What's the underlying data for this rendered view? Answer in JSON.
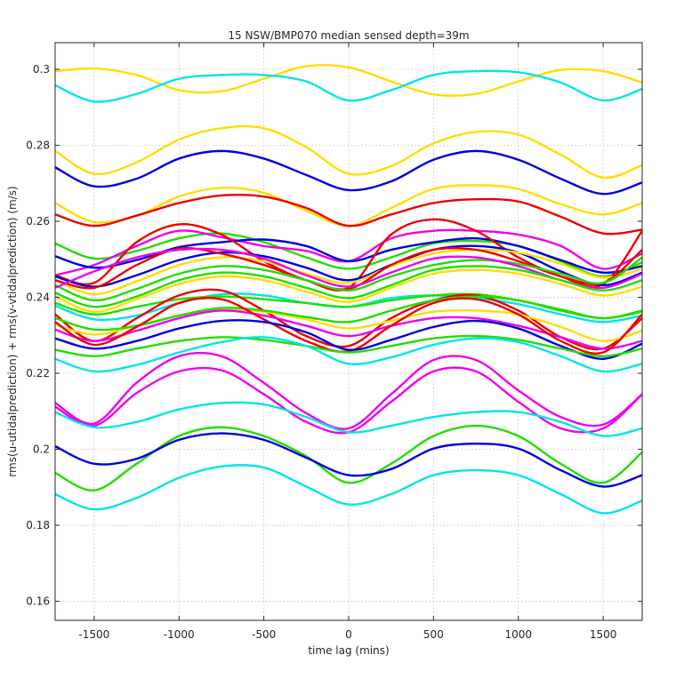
{
  "chart_data": {
    "type": "line",
    "title": "15 NSW/BMP070 median sensed depth=39m",
    "xlabel": "time lag (mins)",
    "ylabel": "rms(u-utidalprediction) + rms(v-vtidalprediction) (m/s)",
    "xlim": [
      -1730,
      1730
    ],
    "ylim": [
      0.155,
      0.307
    ],
    "xticks": [
      -1500,
      -1000,
      -500,
      0,
      500,
      1000,
      1500
    ],
    "xtick_labels": [
      "-1500",
      "-1000",
      "-500",
      "0",
      "500",
      "1000",
      "1500"
    ],
    "yticks": [
      0.16,
      0.18,
      0.2,
      0.22,
      0.24,
      0.26,
      0.28,
      0.3
    ],
    "ytick_labels": [
      "0.16",
      "0.18",
      "0.2",
      "0.22",
      "0.24",
      "0.26",
      "0.28",
      "0.3"
    ],
    "grid": true,
    "legend": "none",
    "x": [
      -1730,
      -1500,
      -1250,
      -1000,
      -750,
      -500,
      -250,
      0,
      250,
      500,
      750,
      1000,
      1250,
      1500,
      1730
    ],
    "series": [
      {
        "name": "yellow-1",
        "color": "#ffdd00",
        "values": [
          0.2995,
          0.3002,
          0.2985,
          0.2945,
          0.2942,
          0.2975,
          0.3008,
          0.3005,
          0.2968,
          0.2934,
          0.2935,
          0.2968,
          0.2998,
          0.2995,
          0.2965
        ]
      },
      {
        "name": "cyan-1",
        "color": "#00e5e5",
        "values": [
          0.2958,
          0.2915,
          0.2935,
          0.2975,
          0.2985,
          0.2985,
          0.2968,
          0.2918,
          0.2945,
          0.2985,
          0.2995,
          0.2992,
          0.2965,
          0.2918,
          0.2948
        ]
      },
      {
        "name": "yellow-2",
        "color": "#ffdd00",
        "values": [
          0.2785,
          0.2725,
          0.2755,
          0.2815,
          0.2845,
          0.2845,
          0.2795,
          0.2725,
          0.2745,
          0.2805,
          0.2835,
          0.2828,
          0.2775,
          0.2715,
          0.2748
        ]
      },
      {
        "name": "blue-1",
        "color": "#0000dd",
        "values": [
          0.2742,
          0.2692,
          0.2712,
          0.2765,
          0.2785,
          0.2765,
          0.2722,
          0.2682,
          0.2705,
          0.2762,
          0.2785,
          0.2762,
          0.2712,
          0.2672,
          0.2702
        ]
      },
      {
        "name": "yellow-3",
        "color": "#ffdd00",
        "values": [
          0.2648,
          0.2598,
          0.2615,
          0.2665,
          0.2688,
          0.2675,
          0.2628,
          0.2588,
          0.2635,
          0.2685,
          0.2695,
          0.2685,
          0.2645,
          0.2618,
          0.2648
        ]
      },
      {
        "name": "red-1",
        "color": "#ee0000",
        "values": [
          0.2618,
          0.2588,
          0.2615,
          0.2648,
          0.2668,
          0.2665,
          0.2635,
          0.2588,
          0.2618,
          0.2648,
          0.2658,
          0.2652,
          0.2612,
          0.2568,
          0.2578
        ]
      },
      {
        "name": "green-1",
        "color": "#22dd00",
        "values": [
          0.2542,
          0.2502,
          0.2522,
          0.2555,
          0.2568,
          0.2545,
          0.2505,
          0.2475,
          0.2505,
          0.2542,
          0.2548,
          0.2535,
          0.2495,
          0.2455,
          0.2492
        ]
      },
      {
        "name": "magenta-1",
        "color": "#ee00ee",
        "values": [
          0.2458,
          0.2485,
          0.2535,
          0.2575,
          0.2558,
          0.2535,
          0.2522,
          0.2495,
          0.2555,
          0.2575,
          0.2575,
          0.2565,
          0.2535,
          0.2475,
          0.2515
        ]
      },
      {
        "name": "blue-2",
        "color": "#0000dd",
        "values": [
          0.2508,
          0.2478,
          0.2498,
          0.2532,
          0.2545,
          0.2552,
          0.2535,
          0.2495,
          0.2525,
          0.2545,
          0.2555,
          0.2535,
          0.2498,
          0.2465,
          0.2482
        ]
      },
      {
        "name": "red-2",
        "color": "#ee0000",
        "values": [
          0.2458,
          0.2438,
          0.2545,
          0.2592,
          0.2565,
          0.2495,
          0.2445,
          0.2425,
          0.2565,
          0.2605,
          0.2575,
          0.2505,
          0.2455,
          0.2435,
          0.2575
        ]
      },
      {
        "name": "blue-3",
        "color": "#0000dd",
        "values": [
          0.2455,
          0.2428,
          0.2458,
          0.2498,
          0.2518,
          0.2508,
          0.2478,
          0.2445,
          0.2485,
          0.2525,
          0.2535,
          0.2518,
          0.2468,
          0.2432,
          0.2465
        ]
      },
      {
        "name": "yellow-4",
        "color": "#ffdd00",
        "values": [
          0.2445,
          0.2408,
          0.2442,
          0.2485,
          0.2505,
          0.2495,
          0.2462,
          0.2438,
          0.2482,
          0.2515,
          0.2525,
          0.2518,
          0.2488,
          0.2452,
          0.2475
        ]
      },
      {
        "name": "red-3",
        "color": "#ee0000",
        "values": [
          0.2445,
          0.2425,
          0.2485,
          0.2528,
          0.2515,
          0.2485,
          0.2445,
          0.2422,
          0.2485,
          0.2525,
          0.2525,
          0.2495,
          0.2455,
          0.2438,
          0.2525
        ]
      },
      {
        "name": "green-2",
        "color": "#22dd00",
        "values": [
          0.2432,
          0.2392,
          0.2422,
          0.2462,
          0.2482,
          0.2472,
          0.2445,
          0.2418,
          0.2455,
          0.2485,
          0.2498,
          0.2488,
          0.2462,
          0.2438,
          0.2505
        ]
      },
      {
        "name": "magenta-2",
        "color": "#ee00ee",
        "values": [
          0.2425,
          0.2468,
          0.2505,
          0.2525,
          0.2525,
          0.2502,
          0.2458,
          0.2428,
          0.2465,
          0.2502,
          0.2505,
          0.2482,
          0.2445,
          0.2425,
          0.2462
        ]
      },
      {
        "name": "green-3",
        "color": "#22dd00",
        "values": [
          0.2412,
          0.2375,
          0.2402,
          0.2445,
          0.2465,
          0.2455,
          0.2425,
          0.2398,
          0.2432,
          0.2472,
          0.2482,
          0.2472,
          0.2445,
          0.2418,
          0.2445
        ]
      },
      {
        "name": "yellow-5",
        "color": "#ffdd00",
        "values": [
          0.2402,
          0.2362,
          0.2395,
          0.2435,
          0.2455,
          0.2445,
          0.2415,
          0.2388,
          0.2425,
          0.2462,
          0.2472,
          0.2462,
          0.2435,
          0.2405,
          0.2428
        ]
      },
      {
        "name": "cyan-2",
        "color": "#00e5e5",
        "values": [
          0.2378,
          0.2342,
          0.2352,
          0.2385,
          0.2408,
          0.2405,
          0.2385,
          0.2375,
          0.2398,
          0.2405,
          0.2398,
          0.2382,
          0.2355,
          0.2335,
          0.2352
        ]
      },
      {
        "name": "green-4",
        "color": "#22dd00",
        "values": [
          0.2385,
          0.2355,
          0.2375,
          0.2395,
          0.2402,
          0.2395,
          0.2385,
          0.2375,
          0.2392,
          0.2405,
          0.2408,
          0.2392,
          0.2368,
          0.2345,
          0.2365
        ]
      },
      {
        "name": "red-4",
        "color": "#ee0000",
        "values": [
          0.2355,
          0.2285,
          0.2345,
          0.2405,
          0.2418,
          0.2365,
          0.2298,
          0.2272,
          0.2345,
          0.2392,
          0.2405,
          0.2365,
          0.2295,
          0.2265,
          0.2345
        ]
      },
      {
        "name": "yellow-6",
        "color": "#ffdd00",
        "values": [
          0.2328,
          0.2302,
          0.2325,
          0.2352,
          0.2368,
          0.2362,
          0.2342,
          0.2318,
          0.2338,
          0.2362,
          0.2365,
          0.2355,
          0.2322,
          0.2285,
          0.2312
        ]
      },
      {
        "name": "magenta-3",
        "color": "#ee00ee",
        "values": [
          0.2315,
          0.2285,
          0.2312,
          0.2345,
          0.2365,
          0.2352,
          0.2325,
          0.2298,
          0.2325,
          0.2345,
          0.2345,
          0.2325,
          0.2295,
          0.2265,
          0.2285
        ]
      },
      {
        "name": "green-5",
        "color": "#22dd00",
        "values": [
          0.2345,
          0.2315,
          0.2325,
          0.2352,
          0.2372,
          0.2365,
          0.2348,
          0.2335,
          0.2365,
          0.2392,
          0.2402,
          0.2392,
          0.2365,
          0.2345,
          0.2362
        ]
      },
      {
        "name": "red-5",
        "color": "#ee0000",
        "values": [
          0.2335,
          0.2275,
          0.2322,
          0.2385,
          0.2395,
          0.2342,
          0.2285,
          0.2258,
          0.2325,
          0.2385,
          0.2395,
          0.2355,
          0.2285,
          0.2255,
          0.2355
        ]
      },
      {
        "name": "blue-4",
        "color": "#0000dd",
        "values": [
          0.2292,
          0.2265,
          0.2285,
          0.2318,
          0.2338,
          0.2335,
          0.2308,
          0.2262,
          0.2288,
          0.2322,
          0.2338,
          0.2318,
          0.2272,
          0.2238,
          0.2278
        ]
      },
      {
        "name": "green-6",
        "color": "#22dd00",
        "values": [
          0.2262,
          0.2245,
          0.2265,
          0.2285,
          0.2295,
          0.2288,
          0.2272,
          0.2255,
          0.2272,
          0.2292,
          0.2298,
          0.2288,
          0.2265,
          0.2245,
          0.2265
        ]
      },
      {
        "name": "cyan-3",
        "color": "#00e5e5",
        "values": [
          0.2238,
          0.2205,
          0.2222,
          0.2255,
          0.2282,
          0.2295,
          0.2272,
          0.2225,
          0.2242,
          0.2275,
          0.2292,
          0.2282,
          0.2245,
          0.2205,
          0.2225
        ]
      },
      {
        "name": "magenta-4",
        "color": "#ee00ee",
        "values": [
          0.2122,
          0.2068,
          0.2175,
          0.2245,
          0.2245,
          0.2175,
          0.2095,
          0.2055,
          0.2145,
          0.2235,
          0.2235,
          0.2155,
          0.2085,
          0.2065,
          0.2145
        ]
      },
      {
        "name": "magenta-5",
        "color": "#ee00ee",
        "values": [
          0.2112,
          0.2062,
          0.2148,
          0.2205,
          0.2208,
          0.2145,
          0.2072,
          0.2045,
          0.2125,
          0.2205,
          0.2205,
          0.2125,
          0.2055,
          0.2055,
          0.2145
        ]
      },
      {
        "name": "cyan-4",
        "color": "#00e5e5",
        "values": [
          0.2098,
          0.2058,
          0.2072,
          0.2105,
          0.2122,
          0.2118,
          0.2085,
          0.2045,
          0.2062,
          0.2085,
          0.2098,
          0.2098,
          0.2072,
          0.2035,
          0.2055
        ]
      },
      {
        "name": "green-7",
        "color": "#22dd00",
        "values": [
          0.1938,
          0.1892,
          0.1962,
          0.2035,
          0.2058,
          0.2035,
          0.1982,
          0.1912,
          0.1962,
          0.2035,
          0.2062,
          0.2035,
          0.1962,
          0.1912,
          0.1992
        ]
      },
      {
        "name": "blue-5",
        "color": "#0000dd",
        "values": [
          0.2008,
          0.1962,
          0.1975,
          0.2025,
          0.2042,
          0.2025,
          0.1978,
          0.1932,
          0.1948,
          0.2002,
          0.2015,
          0.2002,
          0.1945,
          0.1902,
          0.1932
        ]
      },
      {
        "name": "cyan-5",
        "color": "#00e5e5",
        "values": [
          0.1882,
          0.1842,
          0.1872,
          0.1925,
          0.1955,
          0.1952,
          0.1902,
          0.1855,
          0.1882,
          0.1932,
          0.1945,
          0.1932,
          0.1882,
          0.1832,
          0.1865
        ]
      }
    ]
  }
}
